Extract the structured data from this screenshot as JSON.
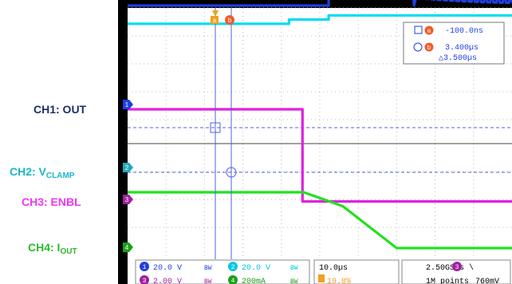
{
  "chart_data": {
    "type": "line",
    "instrument": "oscilloscope",
    "time_per_div": "10.0µs",
    "sample_rate": "2.50GS/s",
    "record_length": "1M points",
    "trigger": {
      "channel": "3",
      "level": "760mV",
      "slope": "\\"
    },
    "trigger_position": "19.8%",
    "cursors": {
      "a_label": "a",
      "b_label": "b",
      "a": "-100.0ns",
      "b": "3.400µs",
      "delta": "△3.500µs"
    },
    "channels": [
      {
        "id": "1",
        "name": "CH1: OUT",
        "scale": "20.0 V",
        "color": "#1f3fe0"
      },
      {
        "id": "2",
        "name": "CH2: VCLAMP",
        "name_main": "CH2: V",
        "name_sub": "CLAMP",
        "scale": "20.0 V",
        "color": "#00dcf0"
      },
      {
        "id": "3",
        "name": "CH3: ENBL",
        "scale": "2.00 V",
        "color": "#e020e0"
      },
      {
        "id": "4",
        "name": "CH4: IOUT",
        "name_main": "CH4: I",
        "name_sub": "OUT",
        "scale": "200mA",
        "color": "#22e022"
      }
    ],
    "x_unit": "div",
    "x_range": [
      0,
      10
    ],
    "series": [
      {
        "name": "CH1: OUT",
        "x": [
          0,
          5.23,
          5.23,
          7.38,
          7.45,
          10
        ],
        "y": [
          4.8,
          4.8,
          6.45,
          6.45,
          4.8,
          4.8
        ],
        "ringing": {
          "from": 7.5,
          "to": 10,
          "amplitude_div": 0.95,
          "decay": true
        }
      },
      {
        "name": "CH2: VCLAMP",
        "x": [
          0,
          4.2,
          4.2,
          5.23,
          5.23,
          10
        ],
        "y": [
          4.15,
          4.15,
          4.3,
          4.3,
          4.45,
          4.45
        ]
      },
      {
        "name": "CH3: ENBL",
        "x": [
          0,
          4.55,
          4.55,
          10
        ],
        "y": [
          4.0,
          4.0,
          0.7,
          0.7
        ]
      },
      {
        "name": "CH4: IOUT",
        "x": [
          0,
          4.58,
          5.6,
          7.0,
          10
        ],
        "y": [
          2.2,
          2.2,
          1.7,
          0.2,
          0.2
        ]
      }
    ],
    "references": {
      "ch1_marker": "1",
      "ch2_marker": "2",
      "ch3_marker": "3",
      "ch4_marker": "4"
    }
  }
}
